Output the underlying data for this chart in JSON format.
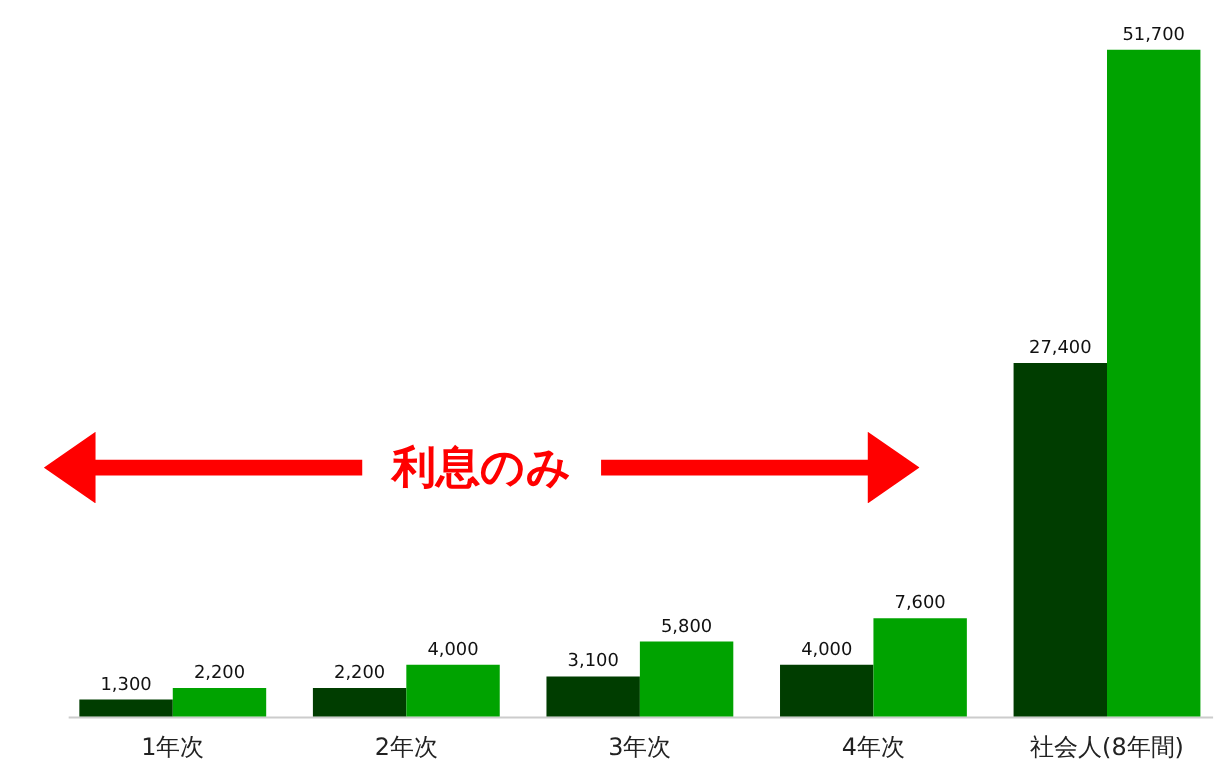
{
  "chart_data": {
    "type": "bar",
    "categories": [
      "1年次",
      "2年次",
      "3年次",
      "4年次",
      "社会人(8年間)"
    ],
    "series": [
      {
        "color": "#003d00",
        "values": [
          1300,
          2200,
          3100,
          4000,
          27400
        ],
        "value_labels": [
          "1,300",
          "2,200",
          "3,100",
          "4,000",
          "27,400"
        ]
      },
      {
        "color": "#00a300",
        "values": [
          2200,
          4000,
          5800,
          7600,
          51700
        ],
        "value_labels": [
          "2,200",
          "4,000",
          "5,800",
          "7,600",
          "51,700"
        ]
      }
    ],
    "tick_labels": "x",
    "grid": false,
    "legend": false,
    "annotations": [
      "利息のみ"
    ]
  }
}
